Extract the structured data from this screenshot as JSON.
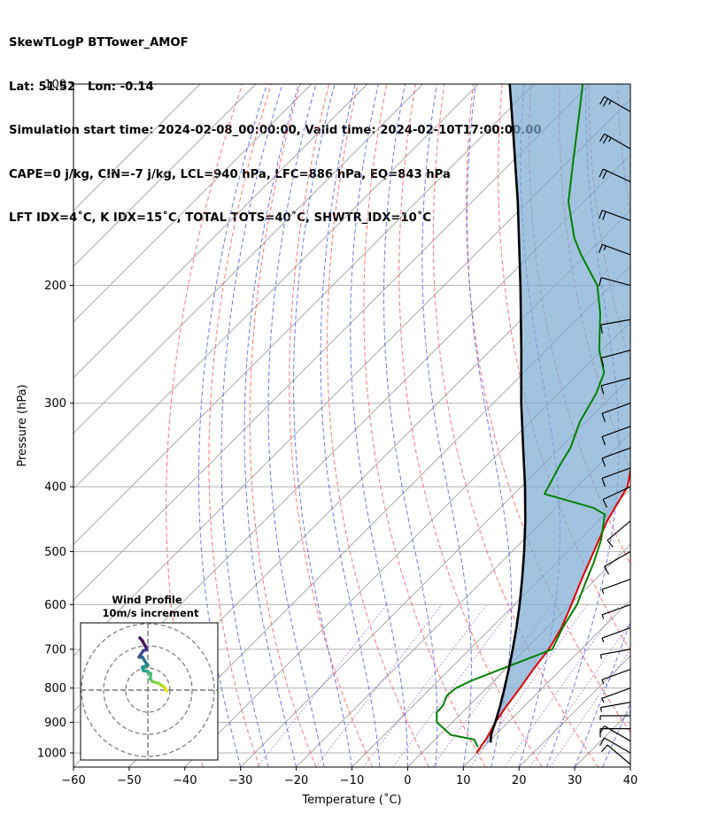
{
  "header": {
    "line1": "SkewTLogP BTTower_AMOF",
    "line2": "Lat: 51.52   Lon: -0.14",
    "line3": "Simulation start time: 2024-02-08_00:00:00, Valid time: 2024-02-10T17:00:00.00",
    "line4": "CAPE=0 j/kg, CIN=-7 j/kg, LCL=940 hPa, LFC=886 hPa, EQ=843 hPa",
    "line5": "LFT IDX=4˚C, K IDX=15˚C, TOTAL TOTS=40˚C, SHWTR_IDX=10˚C"
  },
  "chart_data": [
    {
      "type": "line",
      "subtype": "skew-t log-p",
      "xlabel": "Temperature (˚C)",
      "ylabel": "Pressure (hPa)",
      "xlim": [
        -60,
        40
      ],
      "ylim": [
        1050,
        100
      ],
      "y_scale": "log",
      "x_ticks": [
        "−60",
        "−50",
        "−40",
        "−30",
        "−20",
        "−10",
        "0",
        "10",
        "20",
        "30",
        "40"
      ],
      "y_ticks": [
        "100",
        "200",
        "300",
        "400",
        "500",
        "600",
        "700",
        "800",
        "900",
        "1000"
      ],
      "grid": true,
      "series": [
        {
          "role": "temperature",
          "color": "#e00000",
          "p": [
            1000,
            950,
            900,
            850,
            800,
            750,
            700,
            650,
            600,
            550,
            500,
            450,
            400,
            350,
            320,
            300,
            280,
            250,
            220,
            200,
            180,
            160,
            140,
            120,
            110,
            100
          ],
          "t": [
            9.8,
            9.0,
            7.7,
            6.8,
            6.0,
            5.0,
            4.2,
            2.6,
            0.2,
            -2.5,
            -5.3,
            -8.4,
            -10.9,
            -16.6,
            -20.8,
            -22.6,
            -24.6,
            -30.6,
            -37.0,
            -40.7,
            -45.4,
            -51.4,
            -57.1,
            -63.6,
            -67.1,
            -70.6
          ]
        },
        {
          "role": "dewpoint",
          "color": "#008000",
          "p": [
            980,
            955,
            940,
            900,
            870,
            850,
            820,
            800,
            780,
            700,
            650,
            600,
            560,
            520,
            480,
            440,
            430,
            410,
            370,
            350,
            320,
            290,
            270,
            250,
            220,
            200,
            180,
            170,
            150,
            130,
            110,
            100
          ],
          "t": [
            9.0,
            7.0,
            2.0,
            -2.8,
            -4.6,
            -4.7,
            -5.8,
            -5.5,
            -4.1,
            4.8,
            2.8,
            1.2,
            -1.0,
            -3.3,
            -6.1,
            -10.0,
            -13.3,
            -24.5,
            -27.0,
            -28.1,
            -31.1,
            -33.3,
            -35.6,
            -40.5,
            -47.0,
            -52.5,
            -60.9,
            -65.1,
            -72.7,
            -79.3,
            -86.9,
            -91.3
          ]
        },
        {
          "role": "parcel",
          "color": "#000000",
          "p": [
            965,
            940,
            900,
            850,
            800,
            750,
            700,
            650,
            600,
            550,
            500,
            450,
            400,
            350,
            300,
            250,
            200,
            150,
            120,
            100
          ],
          "t": [
            10.5,
            9.2,
            7.7,
            5.6,
            3.2,
            0.6,
            -2.3,
            -5.5,
            -9.1,
            -13.2,
            -17.8,
            -23.1,
            -29.3,
            -36.6,
            -45.0,
            -54.5,
            -66.3,
            -81.8,
            -94.2,
            -104.4
          ]
        }
      ],
      "annotations": [
        "Wind Profile",
        "10m/s increment"
      ]
    },
    {
      "type": "scatter",
      "subtype": "hodograph",
      "title": "Wind Profile",
      "subtitle": "10m/s increment",
      "rings": [
        10,
        20,
        30
      ],
      "points": [
        [
          8.5,
          -0.5
        ],
        [
          7.6,
          1.2
        ],
        [
          6.4,
          2.0
        ],
        [
          4.7,
          3.1
        ],
        [
          2.0,
          3.9
        ],
        [
          1.1,
          5.0
        ],
        [
          1.3,
          7.4
        ],
        [
          -0.3,
          8.5
        ],
        [
          -2.0,
          8.8
        ],
        [
          -2.5,
          10.4
        ],
        [
          0.0,
          11.2
        ],
        [
          -1.1,
          12.7
        ],
        [
          -2.4,
          14.8
        ],
        [
          -4.0,
          14.9
        ],
        [
          -3.2,
          16.1
        ],
        [
          -2.1,
          17.8
        ],
        [
          -0.6,
          18.3
        ],
        [
          -0.7,
          19.2
        ],
        [
          -1.2,
          19.9
        ],
        [
          -2.4,
          22.2
        ],
        [
          -3.6,
          23.6
        ]
      ]
    }
  ]
}
